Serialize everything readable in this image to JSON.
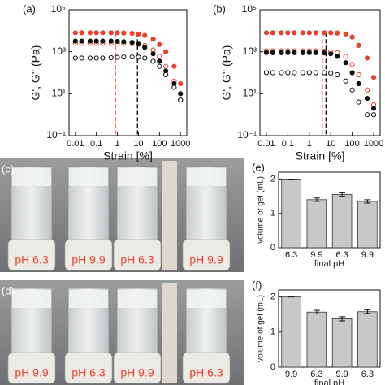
{
  "chart_data": [
    {
      "type": "scatter",
      "panel_label": "(a)",
      "xlabel": "Strain [%]",
      "ylabel": "G', G'' (Pa)",
      "xscale": "log",
      "yscale": "log",
      "xlim": [
        0.005,
        2000
      ],
      "ylim": [
        0.1,
        100000
      ],
      "xticks": [
        0.01,
        0.1,
        1,
        10,
        100,
        1000
      ],
      "yticks": [
        {
          "value": 0.1,
          "label": "10⁻¹"
        },
        {
          "value": 10,
          "label": "10¹"
        },
        {
          "value": 1000,
          "label": "10³"
        },
        {
          "value": 100000,
          "label": "10⁵"
        }
      ],
      "x": [
        0.01,
        0.02,
        0.05,
        0.1,
        0.2,
        0.5,
        1,
        2,
        5,
        10,
        20,
        50,
        100,
        200,
        500,
        1000
      ],
      "series": [
        {
          "color": "#e8412c",
          "marker": "filled",
          "values": [
            8000,
            8000,
            8000,
            8000,
            8000,
            8000,
            8000,
            7800,
            7500,
            7000,
            6000,
            4000,
            2200,
            1000,
            200,
            30
          ]
        },
        {
          "color": "#e8412c",
          "marker": "open",
          "values": [
            2500,
            2500,
            2500,
            2500,
            2500,
            2500,
            2500,
            2500,
            2400,
            2300,
            2000,
            1200,
            600,
            200,
            40,
            5
          ]
        },
        {
          "color": "#111111",
          "marker": "filled",
          "values": [
            3200,
            3200,
            3200,
            3200,
            3200,
            3200,
            3100,
            3000,
            2800,
            2300,
            1600,
            800,
            350,
            120,
            30,
            10
          ]
        },
        {
          "color": "#111111",
          "marker": "open",
          "values": [
            500,
            500,
            500,
            500,
            500,
            520,
            540,
            560,
            560,
            550,
            500,
            350,
            200,
            80,
            20,
            5
          ]
        }
      ],
      "vlines": [
        {
          "x": 0.8,
          "color": "#e8412c"
        },
        {
          "x": 9,
          "color": "#111111"
        }
      ]
    },
    {
      "type": "scatter",
      "panel_label": "(b)",
      "xlabel": "Strain [%]",
      "ylabel": "G', G'' (Pa)",
      "xscale": "log",
      "yscale": "log",
      "xlim": [
        0.005,
        2000
      ],
      "ylim": [
        0.1,
        100000
      ],
      "xticks": [
        0.01,
        0.1,
        1,
        10,
        100,
        1000
      ],
      "yticks": [
        {
          "value": 0.1,
          "label": "10⁻¹"
        },
        {
          "value": 10,
          "label": "10¹"
        },
        {
          "value": 1000,
          "label": "10³"
        },
        {
          "value": 100000,
          "label": "10⁵"
        }
      ],
      "x": [
        0.01,
        0.02,
        0.05,
        0.1,
        0.2,
        0.5,
        1,
        2,
        5,
        10,
        20,
        50,
        100,
        200,
        500,
        1000
      ],
      "series": [
        {
          "color": "#e8412c",
          "marker": "filled",
          "values": [
            8000,
            8000,
            8000,
            8000,
            8000,
            8000,
            8000,
            8000,
            8000,
            8000,
            7800,
            7000,
            5000,
            2000,
            500,
            60
          ]
        },
        {
          "color": "#e8412c",
          "marker": "open",
          "values": [
            1100,
            1100,
            1100,
            1100,
            1100,
            1100,
            1100,
            1100,
            1050,
            1000,
            900,
            600,
            250,
            80,
            15,
            3
          ]
        },
        {
          "color": "#111111",
          "marker": "filled",
          "values": [
            900,
            900,
            900,
            900,
            900,
            900,
            900,
            900,
            880,
            800,
            600,
            300,
            100,
            30,
            6,
            2
          ]
        },
        {
          "color": "#111111",
          "marker": "open",
          "values": [
            100,
            100,
            100,
            100,
            100,
            100,
            100,
            100,
            100,
            95,
            80,
            40,
            15,
            4,
            1,
            1
          ]
        }
      ],
      "vlines": [
        {
          "x": 4,
          "color": "#e8412c"
        },
        {
          "x": 6,
          "color": "#111111"
        }
      ]
    },
    {
      "type": "bar",
      "panel_label": "(e)",
      "xlabel": "final pH",
      "ylabel": "volume of gel (mL)",
      "color": "#c8c8c8",
      "categories": [
        "6.3",
        "9.9",
        "6.3",
        "9.9"
      ],
      "values": [
        2.0,
        1.4,
        1.55,
        1.35
      ],
      "errors": [
        0.0,
        0.05,
        0.05,
        0.05
      ],
      "ylim": [
        0,
        2.2
      ],
      "yticks": [
        0,
        1,
        2
      ]
    },
    {
      "type": "bar",
      "panel_label": "(f)",
      "xlabel": "final pH",
      "ylabel": "volume of gel (mL)",
      "color": "#c8c8c8",
      "categories": [
        "9.9",
        "6.3",
        "9.9",
        "6.3"
      ],
      "values": [
        2.0,
        1.57,
        1.38,
        1.58
      ],
      "errors": [
        0.0,
        0.05,
        0.06,
        0.05
      ],
      "ylim": [
        0,
        2.2
      ],
      "yticks": [
        0,
        1,
        2
      ]
    }
  ],
  "photos": [
    {
      "panel_label": "(c)",
      "labels": [
        "pH 6.3",
        "pH 9.9",
        "pH 6.3",
        "pH 9.9"
      ]
    },
    {
      "panel_label": "(d)",
      "labels": [
        "pH 9.9",
        "pH 6.3",
        "pH 9.9",
        "pH 6.3"
      ]
    }
  ]
}
